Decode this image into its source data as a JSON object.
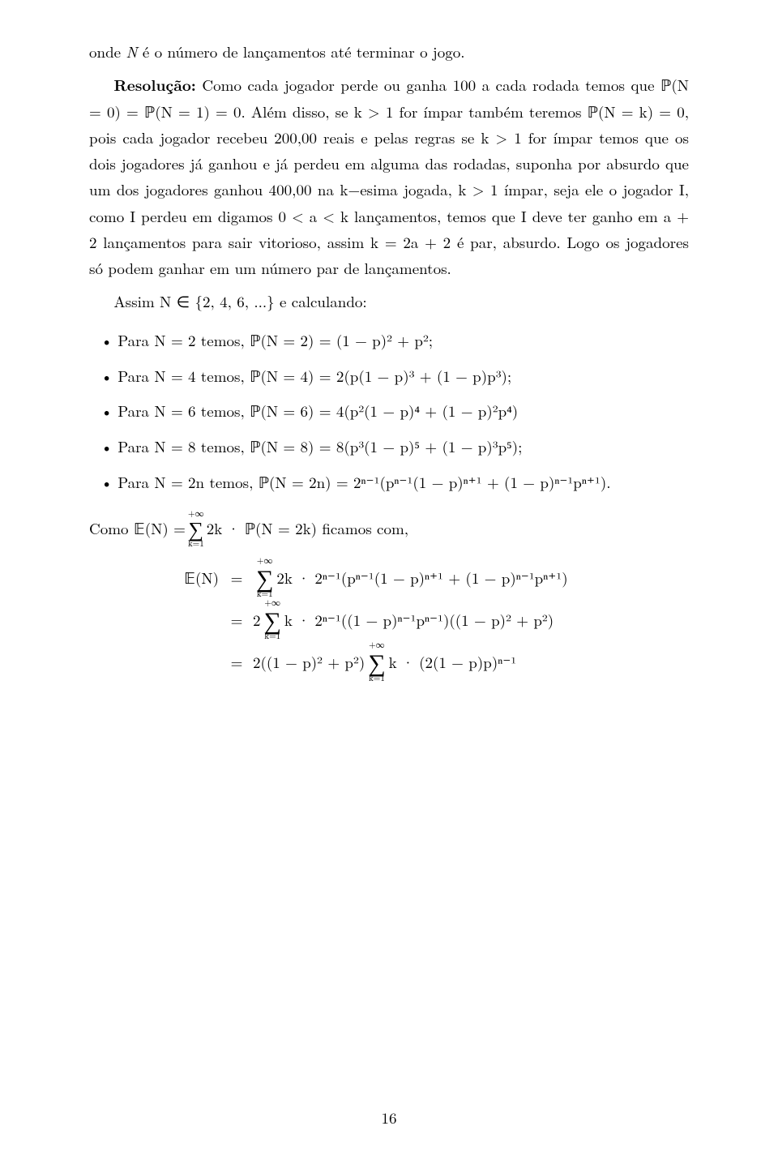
{
  "line1_prefix": "onde ",
  "line1_var": "N",
  "line1_rest": " é o número de lançamentos até terminar o jogo.",
  "resolucao_label": "Resolução:",
  "resolucao_text1": " Como cada jogador perde ou ganha 100 a cada rodada temos que ℙ(N = 0) = ℙ(N = 1) = 0. Além disso, se k > 1 for ímpar também teremos ℙ(N = k) = 0, pois cada jogador recebeu 200,00 reais e pelas regras se k > 1 for ímpar temos que os dois jogadores já ganhou e já perdeu em alguma das rodadas, suponha por absurdo que um dos jogadores ganhou 400,00 na k−esima jogada, k > 1 ímpar, seja ele o jogador I, como I perdeu em digamos 0 < a < k lançamentos, temos que I deve ter ganho em a + 2 lançamentos para sair vitorioso, assim k = 2a + 2 é par, absurdo. Logo os jogadores só podem ganhar em um número par de lançamentos.",
  "assim_line": "Assim N ∈ {2, 4, 6, ...} e calculando:",
  "bullets": [
    "Para N = 2 temos, ℙ(N = 2) = (1 − p)² + p²;",
    "Para N = 4 temos, ℙ(N = 4) = 2(p(1 − p)³ + (1 − p)p³);",
    "Para N = 6 temos, ℙ(N = 6) = 4(p²(1 − p)⁴ + (1 − p)²p⁴)",
    "Para N = 8 temos, ℙ(N = 8) = 8(p³(1 − p)⁵ + (1 − p)³p⁵);",
    "Para N = 2n temos, ℙ(N = 2n) = 2ⁿ⁻¹(pⁿ⁻¹(1 − p)ⁿ⁺¹ + (1 − p)ⁿ⁻¹pⁿ⁺¹)."
  ],
  "como_prefix": "Como 𝔼(N) = ",
  "como_sum": "∑",
  "como_limits_top": "+∞",
  "como_limits_bot": "k=1",
  "como_rest": " 2k · ℙ(N = 2k) ficamos com,",
  "eq_lhs": "𝔼(N)",
  "eq_eq": "=",
  "eq_rhs1_pre": "",
  "eq_rhs1_sum": "∑",
  "eq_rhs1_top": "+∞",
  "eq_rhs1_bot": "k=1",
  "eq_rhs1_rest": " 2k · 2ⁿ⁻¹(pⁿ⁻¹(1 − p)ⁿ⁺¹ + (1 − p)ⁿ⁻¹pⁿ⁺¹)",
  "eq_rhs2_pre": "2 ",
  "eq_rhs2_sum": "∑",
  "eq_rhs2_top": "+∞",
  "eq_rhs2_bot": "k=1",
  "eq_rhs2_rest": " k · 2ⁿ⁻¹((1 − p)ⁿ⁻¹pⁿ⁻¹)((1 − p)² + p²)",
  "eq_rhs3_pre": "2((1 − p)² + p²) ",
  "eq_rhs3_sum": "∑",
  "eq_rhs3_top": "+∞",
  "eq_rhs3_bot": "k=1",
  "eq_rhs3_rest": " k · (2(1 − p)p)ⁿ⁻¹",
  "page_number": "16",
  "colors": {
    "background": "#ffffff",
    "text": "#000000"
  },
  "fontsize_body_pt": 12
}
